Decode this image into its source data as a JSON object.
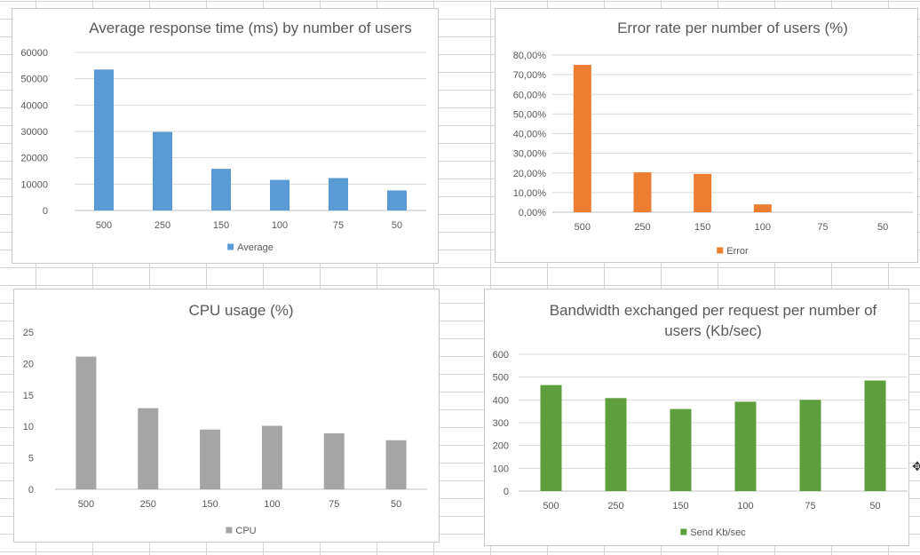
{
  "chart_data": [
    {
      "type": "bar",
      "title": "Average response time (ms) by number of users",
      "categories": [
        "500",
        "250",
        "150",
        "100",
        "75",
        "50"
      ],
      "series": [
        {
          "name": "Average",
          "values": [
            53500,
            29800,
            15800,
            11600,
            12300,
            7600
          ],
          "color": "#5b9bd5"
        }
      ],
      "ylim": [
        0,
        60000
      ],
      "yticks": [
        0,
        10000,
        20000,
        30000,
        40000,
        50000,
        60000
      ],
      "ytick_labels": [
        "0",
        "10000",
        "20000",
        "30000",
        "40000",
        "50000",
        "60000"
      ],
      "grid": true,
      "legend": "bottom"
    },
    {
      "type": "bar",
      "title": "Error rate per number of users (%)",
      "categories": [
        "500",
        "250",
        "150",
        "100",
        "75",
        "50"
      ],
      "series": [
        {
          "name": "Error",
          "values": [
            75,
            20.3,
            19.5,
            4,
            0,
            0
          ],
          "color": "#ed7d31"
        }
      ],
      "ylim": [
        0,
        80
      ],
      "yticks": [
        0,
        10,
        20,
        30,
        40,
        50,
        60,
        70,
        80
      ],
      "ytick_labels": [
        "0,00%",
        "10,00%",
        "20,00%",
        "30,00%",
        "40,00%",
        "50,00%",
        "60,00%",
        "70,00%",
        "80,00%"
      ],
      "grid": true,
      "legend": "bottom"
    },
    {
      "type": "bar",
      "title": "CPU usage (%)",
      "categories": [
        "500",
        "250",
        "150",
        "100",
        "75",
        "50"
      ],
      "series": [
        {
          "name": "CPU",
          "values": [
            21.1,
            12.9,
            9.5,
            10.1,
            8.9,
            7.8
          ],
          "color": "#a5a5a5"
        }
      ],
      "ylim": [
        0,
        25
      ],
      "yticks": [
        0,
        5,
        10,
        15,
        20,
        25
      ],
      "ytick_labels": [
        "0",
        "5",
        "10",
        "15",
        "20",
        "25"
      ],
      "grid": false,
      "legend": "bottom"
    },
    {
      "type": "bar",
      "title": "Bandwidth exchanged per request per number of users (Kb/sec)",
      "title_lines": [
        "Bandwidth exchanged per request per number of",
        "users (Kb/sec)"
      ],
      "categories": [
        "500",
        "250",
        "150",
        "100",
        "75",
        "50"
      ],
      "series": [
        {
          "name": "Send Kb/sec",
          "values": [
            465,
            408,
            360,
            392,
            400,
            485
          ],
          "color": "#5f9e3c"
        }
      ],
      "ylim": [
        0,
        600
      ],
      "yticks": [
        0,
        100,
        200,
        300,
        400,
        500,
        600
      ],
      "ytick_labels": [
        "0",
        "100",
        "200",
        "300",
        "400",
        "500",
        "600"
      ],
      "grid": true,
      "legend": "bottom"
    }
  ]
}
